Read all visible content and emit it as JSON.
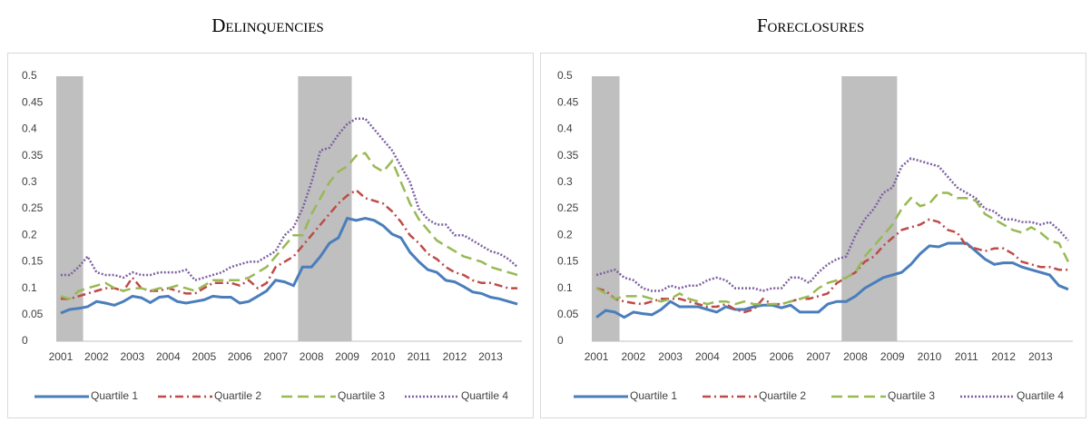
{
  "chart_data": [
    {
      "type": "line",
      "title": "Delinquencies",
      "categories": [
        "2001",
        null,
        null,
        null,
        "2002",
        null,
        null,
        null,
        "2003",
        null,
        null,
        null,
        "2004",
        null,
        null,
        null,
        "2005",
        null,
        null,
        null,
        "2006",
        null,
        null,
        null,
        "2007",
        null,
        null,
        null,
        "2008",
        null,
        null,
        null,
        "2009",
        null,
        null,
        null,
        "2010",
        null,
        null,
        null,
        "2011",
        null,
        null,
        null,
        "2012",
        null,
        null,
        null,
        "2013",
        null,
        null,
        null
      ],
      "ylim": [
        0,
        0.5
      ],
      "yticks": [
        0,
        0.05,
        0.1,
        0.15,
        0.2,
        0.25,
        0.3,
        0.35,
        0.4,
        0.45,
        0.5
      ],
      "grid": false,
      "legend": "bottom",
      "shaded": [
        [
          0,
          2
        ],
        [
          27,
          32
        ]
      ],
      "shade_color": "#bfbfbf",
      "series": [
        {
          "name": "Quartile 1",
          "color": "#4a7ebb",
          "style": "solid",
          "values": [
            0.053,
            0.06,
            0.062,
            0.065,
            0.075,
            0.072,
            0.068,
            0.075,
            0.085,
            0.082,
            0.073,
            0.083,
            0.085,
            0.075,
            0.072,
            0.075,
            0.078,
            0.085,
            0.083,
            0.083,
            0.072,
            0.075,
            0.085,
            0.095,
            0.115,
            0.112,
            0.105,
            0.14,
            0.14,
            0.16,
            0.185,
            0.195,
            0.232,
            0.228,
            0.232,
            0.228,
            0.218,
            0.202,
            0.195,
            0.168,
            0.15,
            0.135,
            0.13,
            0.115,
            0.112,
            0.103,
            0.093,
            0.09,
            0.083,
            0.08,
            0.075,
            0.07
          ]
        },
        {
          "name": "Quartile 2",
          "color": "#be4b48",
          "style": "dashdot",
          "values": [
            0.08,
            0.08,
            0.085,
            0.09,
            0.095,
            0.1,
            0.1,
            0.095,
            0.12,
            0.1,
            0.095,
            0.095,
            0.1,
            0.095,
            0.09,
            0.09,
            0.1,
            0.11,
            0.11,
            0.11,
            0.105,
            0.115,
            0.1,
            0.11,
            0.14,
            0.15,
            0.16,
            0.18,
            0.2,
            0.22,
            0.24,
            0.26,
            0.275,
            0.285,
            0.27,
            0.265,
            0.26,
            0.245,
            0.225,
            0.2,
            0.185,
            0.165,
            0.155,
            0.14,
            0.13,
            0.125,
            0.115,
            0.11,
            0.11,
            0.105,
            0.1,
            0.1
          ]
        },
        {
          "name": "Quartile 3",
          "color": "#98b954",
          "style": "dashed",
          "values": [
            0.085,
            0.08,
            0.095,
            0.1,
            0.105,
            0.11,
            0.1,
            0.095,
            0.1,
            0.1,
            0.095,
            0.1,
            0.1,
            0.105,
            0.1,
            0.095,
            0.105,
            0.115,
            0.115,
            0.115,
            0.115,
            0.12,
            0.13,
            0.14,
            0.16,
            0.18,
            0.2,
            0.2,
            0.24,
            0.27,
            0.3,
            0.32,
            0.33,
            0.35,
            0.355,
            0.33,
            0.32,
            0.34,
            0.3,
            0.26,
            0.23,
            0.21,
            0.19,
            0.18,
            0.17,
            0.16,
            0.155,
            0.15,
            0.14,
            0.135,
            0.13,
            0.125
          ]
        },
        {
          "name": "Quartile 4",
          "color": "#7d60a0",
          "style": "dotted",
          "values": [
            0.125,
            0.125,
            0.14,
            0.16,
            0.13,
            0.125,
            0.125,
            0.12,
            0.13,
            0.125,
            0.125,
            0.13,
            0.13,
            0.13,
            0.135,
            0.115,
            0.12,
            0.125,
            0.13,
            0.14,
            0.145,
            0.15,
            0.15,
            0.16,
            0.17,
            0.2,
            0.215,
            0.25,
            0.3,
            0.36,
            0.365,
            0.39,
            0.41,
            0.42,
            0.42,
            0.4,
            0.38,
            0.36,
            0.33,
            0.3,
            0.25,
            0.23,
            0.22,
            0.22,
            0.2,
            0.2,
            0.19,
            0.18,
            0.17,
            0.165,
            0.155,
            0.14
          ]
        }
      ]
    },
    {
      "type": "line",
      "title": "Foreclosures",
      "categories": [
        "2001",
        null,
        null,
        null,
        "2002",
        null,
        null,
        null,
        "2003",
        null,
        null,
        null,
        "2004",
        null,
        null,
        null,
        "2005",
        null,
        null,
        null,
        "2006",
        null,
        null,
        null,
        "2007",
        null,
        null,
        null,
        "2008",
        null,
        null,
        null,
        "2009",
        null,
        null,
        null,
        "2010",
        null,
        null,
        null,
        "2011",
        null,
        null,
        null,
        "2012",
        null,
        null,
        null,
        "2013",
        null,
        null,
        null
      ],
      "ylim": [
        0,
        0.5
      ],
      "yticks": [
        0,
        0.05,
        0.1,
        0.15,
        0.2,
        0.25,
        0.3,
        0.35,
        0.4,
        0.45,
        0.5
      ],
      "grid": false,
      "legend": "bottom",
      "shaded": [
        [
          0,
          2
        ],
        [
          27,
          32
        ]
      ],
      "shade_color": "#bfbfbf",
      "series": [
        {
          "name": "Quartile 1",
          "color": "#4a7ebb",
          "style": "solid",
          "values": [
            0.045,
            0.058,
            0.055,
            0.045,
            0.055,
            0.052,
            0.05,
            0.06,
            0.075,
            0.065,
            0.065,
            0.065,
            0.06,
            0.055,
            0.065,
            0.06,
            0.06,
            0.065,
            0.068,
            0.068,
            0.063,
            0.068,
            0.055,
            0.055,
            0.055,
            0.07,
            0.075,
            0.075,
            0.085,
            0.1,
            0.11,
            0.12,
            0.125,
            0.13,
            0.145,
            0.165,
            0.18,
            0.178,
            0.185,
            0.185,
            0.185,
            0.17,
            0.155,
            0.145,
            0.148,
            0.148,
            0.14,
            0.135,
            0.13,
            0.125,
            0.105,
            0.098
          ]
        },
        {
          "name": "Quartile 2",
          "color": "#be4b48",
          "style": "dashdot",
          "values": [
            0.1,
            0.095,
            0.08,
            0.075,
            0.072,
            0.07,
            0.075,
            0.08,
            0.08,
            0.08,
            0.075,
            0.07,
            0.065,
            0.065,
            0.07,
            0.06,
            0.055,
            0.06,
            0.08,
            0.07,
            0.07,
            0.075,
            0.08,
            0.08,
            0.085,
            0.09,
            0.11,
            0.12,
            0.13,
            0.15,
            0.16,
            0.18,
            0.195,
            0.21,
            0.215,
            0.22,
            0.23,
            0.225,
            0.21,
            0.205,
            0.18,
            0.175,
            0.17,
            0.175,
            0.175,
            0.165,
            0.15,
            0.145,
            0.14,
            0.14,
            0.135,
            0.135
          ]
        },
        {
          "name": "Quartile 3",
          "color": "#98b954",
          "style": "dashed",
          "values": [
            0.1,
            0.09,
            0.08,
            0.085,
            0.085,
            0.085,
            0.08,
            0.075,
            0.08,
            0.09,
            0.08,
            0.075,
            0.07,
            0.075,
            0.075,
            0.07,
            0.075,
            0.07,
            0.07,
            0.07,
            0.07,
            0.075,
            0.08,
            0.085,
            0.1,
            0.11,
            0.115,
            0.12,
            0.13,
            0.16,
            0.18,
            0.2,
            0.22,
            0.25,
            0.27,
            0.255,
            0.26,
            0.28,
            0.28,
            0.27,
            0.27,
            0.265,
            0.24,
            0.23,
            0.22,
            0.21,
            0.205,
            0.215,
            0.205,
            0.19,
            0.185,
            0.15
          ]
        },
        {
          "name": "Quartile 4",
          "color": "#7d60a0",
          "style": "dotted",
          "values": [
            0.125,
            0.13,
            0.135,
            0.12,
            0.115,
            0.1,
            0.095,
            0.095,
            0.105,
            0.1,
            0.105,
            0.105,
            0.115,
            0.12,
            0.115,
            0.1,
            0.1,
            0.1,
            0.095,
            0.1,
            0.1,
            0.12,
            0.12,
            0.11,
            0.13,
            0.145,
            0.155,
            0.16,
            0.2,
            0.23,
            0.25,
            0.28,
            0.29,
            0.33,
            0.345,
            0.34,
            0.335,
            0.33,
            0.31,
            0.29,
            0.28,
            0.27,
            0.25,
            0.245,
            0.23,
            0.23,
            0.225,
            0.225,
            0.22,
            0.225,
            0.21,
            0.19
          ]
        }
      ]
    }
  ]
}
